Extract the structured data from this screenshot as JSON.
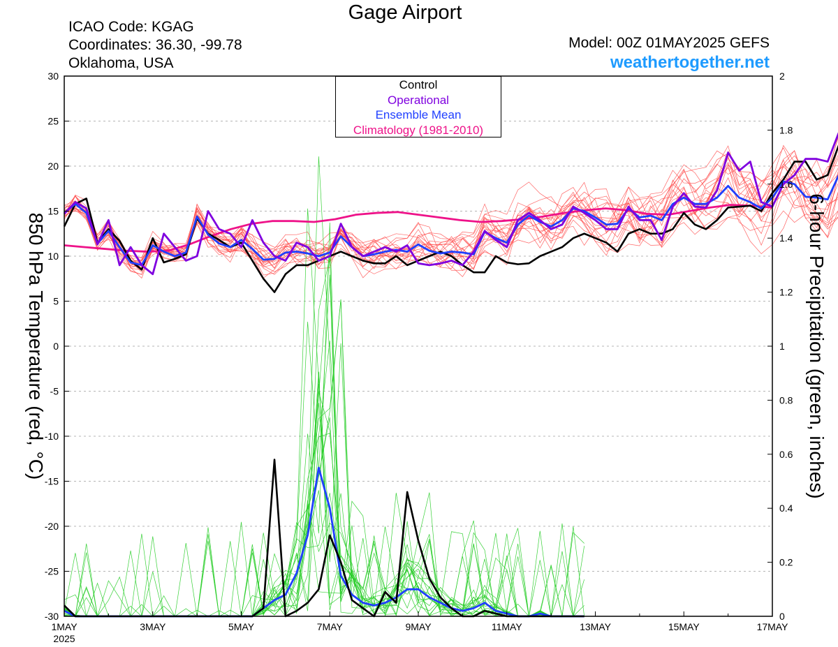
{
  "header": {
    "title": "Gage Airport",
    "icao": "ICAO Code: KGAG",
    "coords": "Coordinates: 36.30, -99.78",
    "location": "Oklahoma, USA",
    "model": "Model: 00Z 01MAY2025 GEFS",
    "website": "weathertogether.net"
  },
  "legend": {
    "control": "Control",
    "operational": "Operational",
    "ensemble_mean": "Ensemble Mean",
    "climatology": "Climatology (1981-2010)"
  },
  "colors": {
    "control": "#000000",
    "operational": "#7f00df",
    "ensemble_mean": "#1f3fff",
    "climatology": "#ee1289",
    "members_temp": "#ff4a4a",
    "members_precip": "#22cc22",
    "website": "#1e9bff"
  },
  "chart_data": {
    "type": "line",
    "ylabel": "850 hPa Temperature (red, °C)",
    "y2label": "6-hour Precipitation (green, inches)",
    "x_ticks": [
      "1MAY",
      "3MAY",
      "5MAY",
      "7MAY",
      "9MAY",
      "11MAY",
      "13MAY",
      "15MAY",
      "17MAY"
    ],
    "x_year": "2025",
    "x_range_days": [
      0,
      16
    ],
    "y_range": [
      -30,
      30
    ],
    "y_ticks": [
      -30,
      -25,
      -20,
      -15,
      -10,
      -5,
      0,
      5,
      10,
      15,
      20,
      25,
      30
    ],
    "y2_range": [
      0,
      2
    ],
    "y2_ticks": [
      "0",
      "0.2",
      "0.4",
      "0.6",
      "0.8",
      "1",
      "1.2",
      "1.4",
      "1.6",
      "1.8",
      "2"
    ],
    "step_hours": 6,
    "series": [
      {
        "name": "Control",
        "axis": "temperature",
        "values": [
          13.3,
          15.8,
          16.4,
          11.5,
          13.0,
          11.7,
          9.5,
          8.5,
          12.0,
          9.3,
          9.7,
          10.2,
          14.2,
          12.5,
          11.8,
          11.0,
          11.5,
          9.5,
          7.5,
          6.0,
          8.0,
          9.0,
          9.0,
          9.5,
          10.0,
          10.5,
          10.0,
          9.5,
          9.2,
          9.2,
          10.0,
          9.0,
          9.5,
          10.0,
          10.5,
          10.0,
          9.0,
          8.2,
          8.2,
          10.0,
          9.3,
          9.1,
          9.2,
          10.0,
          10.5,
          11.0,
          12.0,
          12.5,
          12.0,
          11.5,
          10.5,
          12.5,
          13.0,
          12.5,
          12.5,
          13.0,
          14.8,
          13.5,
          13.0,
          14.0,
          15.4,
          15.5,
          15.6,
          15.0,
          17.0,
          18.5,
          20.5,
          20.5,
          18.5,
          19.0,
          22.3
        ]
      },
      {
        "name": "Operational",
        "axis": "temperature",
        "values": [
          14.7,
          16.0,
          15.3,
          11.3,
          14.0,
          9.0,
          11.0,
          9.0,
          8.0,
          12.5,
          11.0,
          9.5,
          10.0,
          15.0,
          13.0,
          12.5,
          11.0,
          14.0,
          11.5,
          10.0,
          9.5,
          11.5,
          11.0,
          9.5,
          10.0,
          13.6,
          11.0,
          10.0,
          10.5,
          11.0,
          10.5,
          11.2,
          9.2,
          9.0,
          9.2,
          9.5,
          9.0,
          10.5,
          12.8,
          11.8,
          11.0,
          14.0,
          14.8,
          14.0,
          13.0,
          13.5,
          15.5,
          14.8,
          14.0,
          13.0,
          13.0,
          15.5,
          14.0,
          14.0,
          11.8,
          15.5,
          17.0,
          15.5,
          15.4,
          17.3,
          21.5,
          19.5,
          20.5,
          16.0,
          15.5,
          18.0,
          19.0,
          20.8,
          20.8,
          20.5,
          23.7
        ]
      },
      {
        "name": "Ensemble Mean",
        "axis": "temperature",
        "values": [
          14.8,
          15.8,
          14.8,
          11.4,
          12.8,
          11.0,
          9.3,
          9.0,
          11.2,
          10.5,
          10.0,
          10.4,
          14.4,
          12.4,
          11.4,
          11.0,
          11.8,
          10.8,
          9.6,
          9.7,
          10.4,
          10.5,
          10.3,
          10.0,
          10.4,
          12.2,
          11.0,
          10.0,
          10.2,
          10.5,
          10.7,
          10.5,
          11.3,
          10.6,
          10.3,
          10.5,
          10.4,
          10.2,
          12.7,
          12.0,
          11.5,
          13.5,
          14.5,
          13.8,
          13.3,
          14.0,
          15.3,
          15.0,
          14.3,
          13.5,
          13.6,
          15.3,
          14.3,
          14.5,
          14.0,
          15.8,
          16.5,
          15.8,
          15.8,
          16.5,
          17.8,
          16.5,
          16.0,
          15.3,
          16.5,
          18.3,
          18.0,
          16.6,
          16.5,
          16.3,
          19.0
        ]
      },
      {
        "name": "Climatology (1981-2010)",
        "axis": "temperature",
        "values": [
          11.2,
          11.0,
          10.8,
          10.6,
          10.5,
          10.6,
          11.3,
          12.2,
          13.0,
          13.6,
          13.9,
          13.9,
          13.8,
          14.1,
          14.6,
          14.8,
          14.9,
          14.6,
          14.3,
          14.0,
          13.8,
          13.9,
          14.1,
          14.4,
          14.8,
          15.1,
          15.3,
          15.1,
          14.7,
          14.6,
          15.0,
          15.4,
          15.7,
          15.6,
          15.4
        ]
      },
      {
        "name": "Control",
        "axis": "precipitation",
        "values": [
          0.04,
          0.0,
          0.0,
          0.0,
          0.0,
          0.0,
          0.0,
          0.0,
          0.0,
          0.0,
          0.0,
          0.0,
          0.0,
          0.0,
          0.0,
          0.0,
          0.0,
          0.0,
          0.03,
          0.58,
          0.0,
          0.02,
          0.05,
          0.1,
          0.3,
          0.2,
          0.06,
          0.03,
          0.0,
          0.09,
          0.05,
          0.46,
          0.28,
          0.14,
          0.07,
          0.03,
          0.0,
          0.0,
          0.02,
          0.01,
          0.0,
          0.0,
          0.0,
          0.0,
          0.0,
          0.0,
          0.0,
          0.0
        ]
      },
      {
        "name": "Ensemble Mean",
        "axis": "precipitation",
        "values": [
          0.02,
          0.0,
          0.0,
          0.0,
          0.0,
          0.0,
          0.0,
          0.0,
          0.0,
          0.0,
          0.0,
          0.0,
          0.0,
          0.0,
          0.0,
          0.0,
          0.0,
          0.0,
          0.03,
          0.06,
          0.08,
          0.16,
          0.3,
          0.55,
          0.4,
          0.15,
          0.08,
          0.05,
          0.04,
          0.05,
          0.07,
          0.1,
          0.1,
          0.07,
          0.05,
          0.03,
          0.02,
          0.03,
          0.05,
          0.02,
          0.01,
          0.0,
          0.0,
          0.01,
          0.0,
          0.0,
          0.0,
          0.0
        ]
      }
    ]
  }
}
